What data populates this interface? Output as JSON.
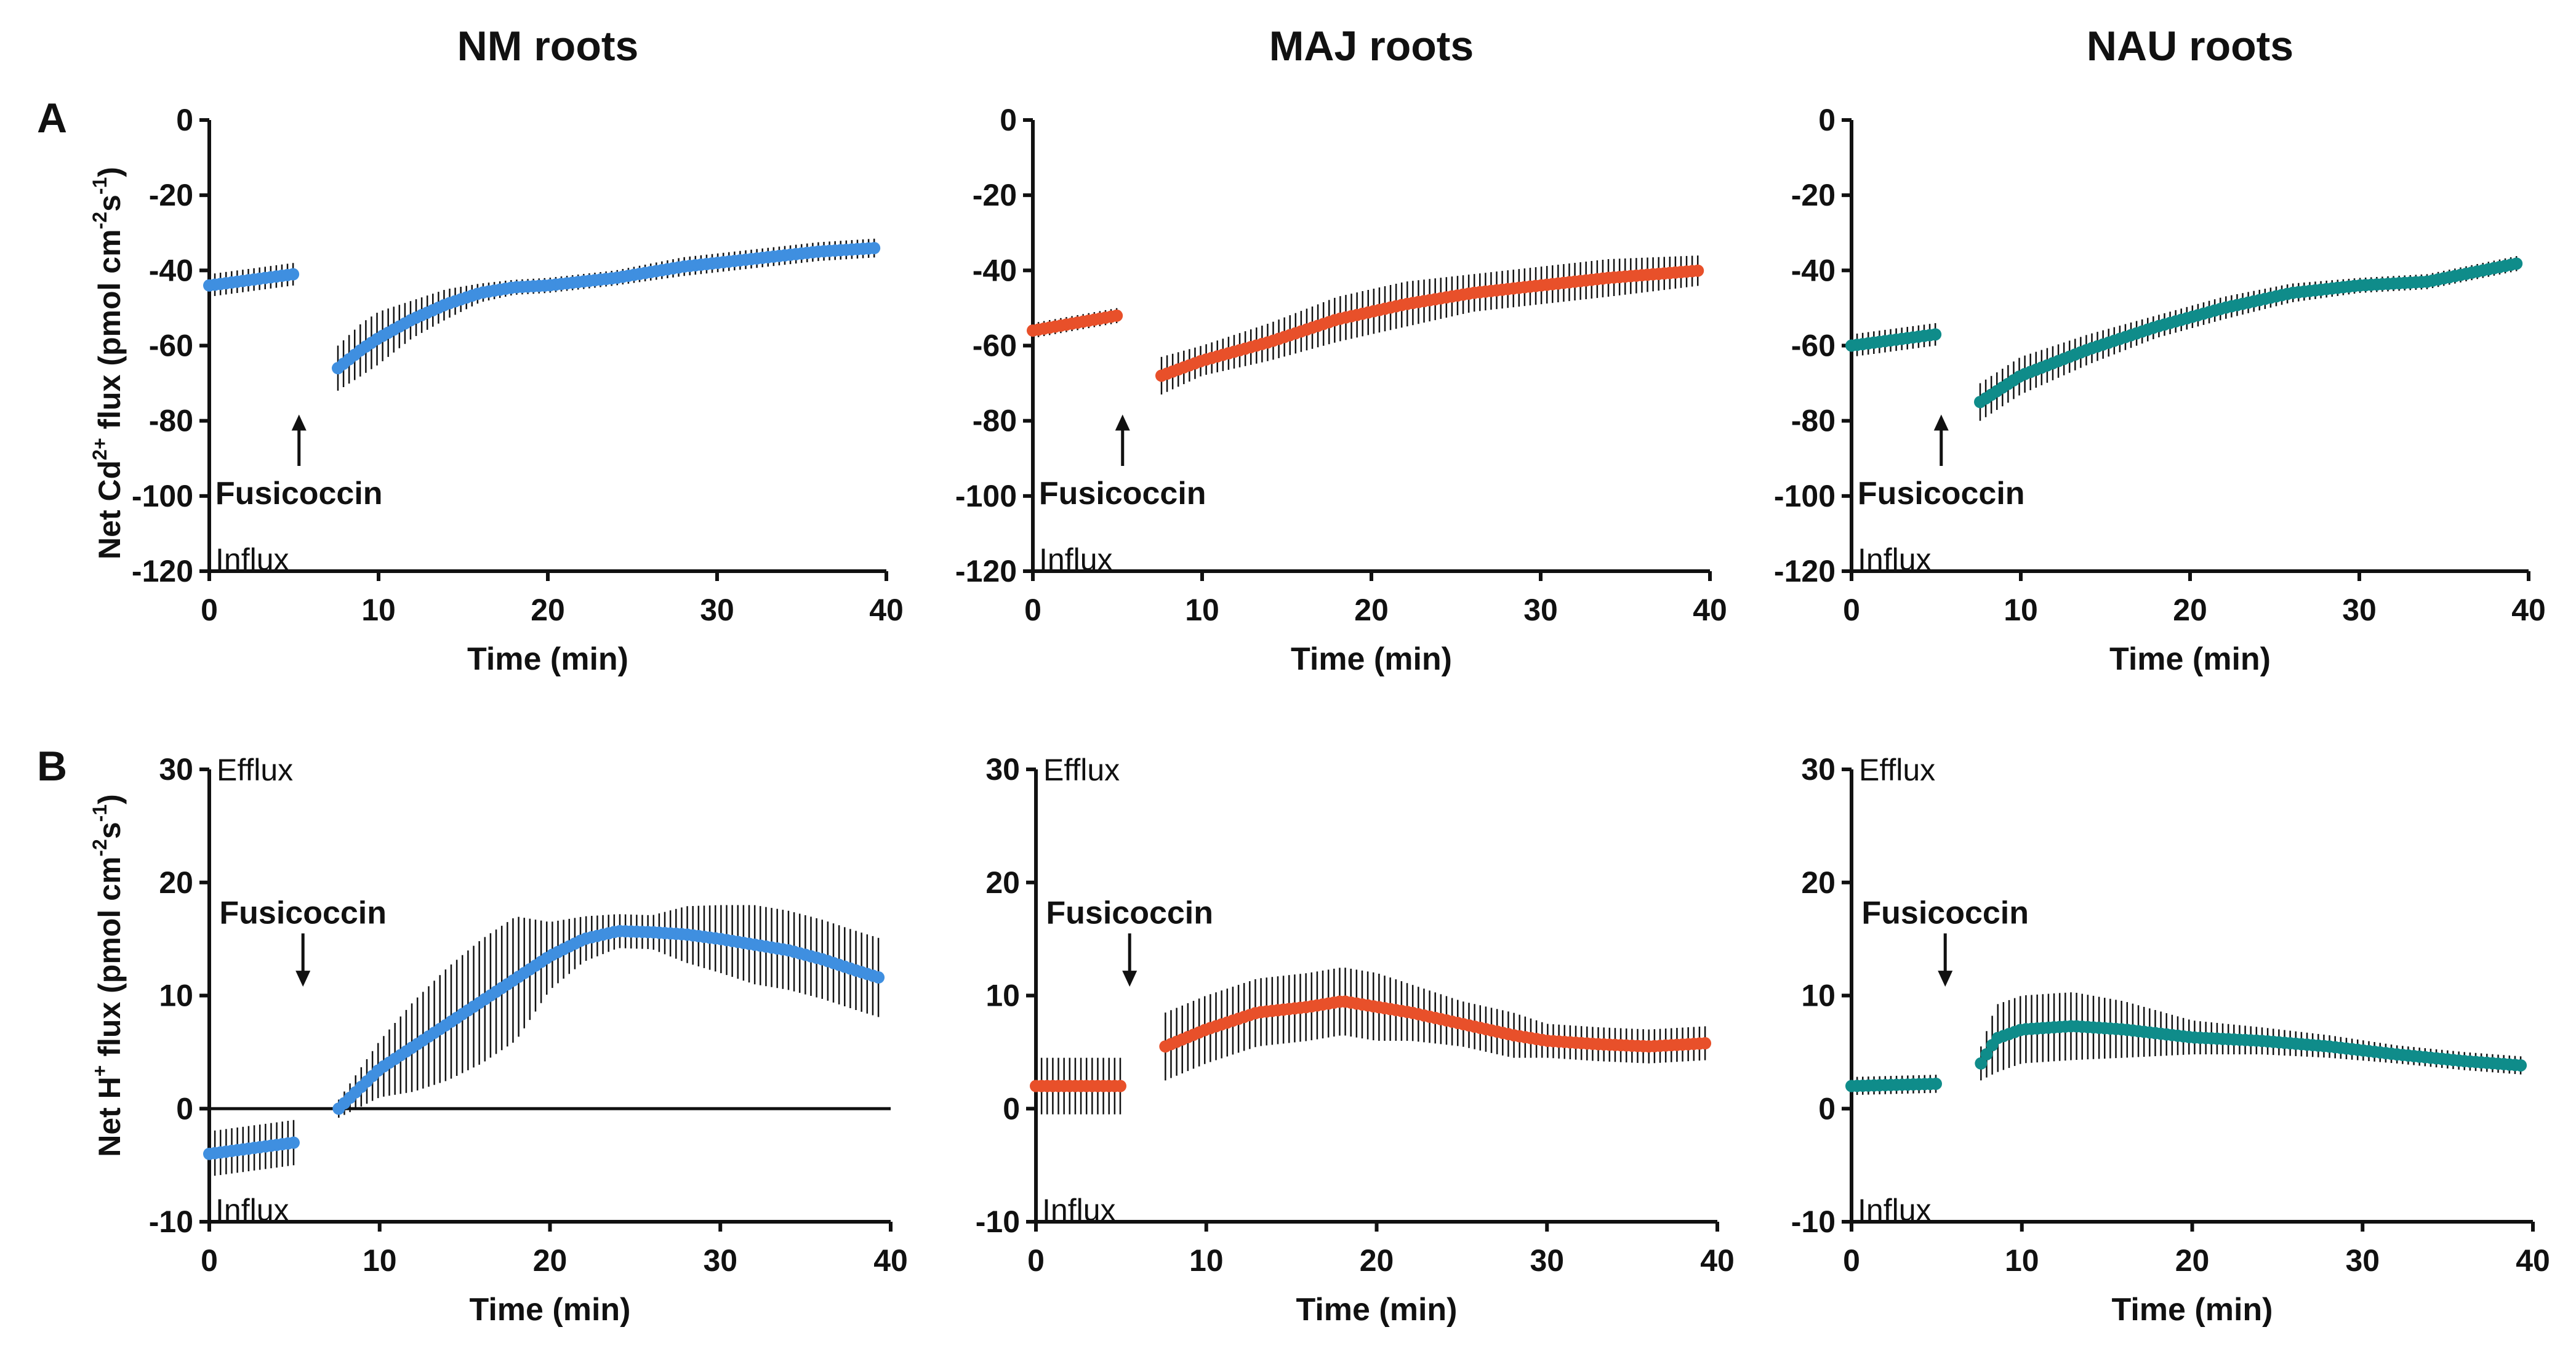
{
  "chart_data": [
    {
      "type": "scatter",
      "row": "A",
      "title": "NM roots",
      "xlabel": "Time (min)",
      "ylabel_main": "Net Cd",
      "ylabel_sup": "2+",
      "ylabel_tail": " flux (pmol cm",
      "ylabel_sup2": "-2",
      "ylabel_mid": "s",
      "ylabel_sup3": "-1",
      "ylabel_end": ")",
      "xlim": [
        0,
        40
      ],
      "ylim": [
        -120,
        0
      ],
      "xticks": [
        "0",
        "10",
        "20",
        "30",
        "40"
      ],
      "yticks": [
        "0",
        "-20",
        "-40",
        "-60",
        "-80",
        "-100",
        "-120"
      ],
      "corner_label": "Influx",
      "treatment": "Fusicoccin",
      "treatment_time": 5.3,
      "treatment_arrow": "up",
      "treatment_arrow_range": [
        -79,
        -92
      ],
      "color": "#3F8FE0",
      "series": [
        {
          "name": "before",
          "x": [
            0,
            5
          ],
          "y": [
            -44,
            -41
          ],
          "err": [
            3,
            3
          ]
        },
        {
          "name": "after",
          "x": [
            7.6,
            9,
            10,
            12,
            14,
            16,
            18,
            20,
            24,
            28,
            32,
            36,
            39.5
          ],
          "y": [
            -66,
            -61,
            -58,
            -53,
            -49,
            -46,
            -44.5,
            -44,
            -42,
            -39,
            -37,
            -35,
            -34
          ],
          "err": [
            6,
            7,
            7,
            5,
            4,
            2.5,
            2,
            2,
            2,
            2.5,
            2.5,
            2.5,
            2.5
          ]
        }
      ]
    },
    {
      "type": "scatter",
      "row": "A",
      "title": "MAJ roots",
      "xlabel": "Time (min)",
      "xlim": [
        0,
        40
      ],
      "ylim": [
        -120,
        0
      ],
      "xticks": [
        "0",
        "10",
        "20",
        "30",
        "40"
      ],
      "yticks": [
        "0",
        "-20",
        "-40",
        "-60",
        "-80",
        "-100",
        "-120"
      ],
      "corner_label": "Influx",
      "treatment": "Fusicoccin",
      "treatment_time": 5.3,
      "treatment_arrow": "up",
      "treatment_arrow_range": [
        -79,
        -92
      ],
      "color": "#E8502A",
      "series": [
        {
          "name": "before",
          "x": [
            0,
            5
          ],
          "y": [
            -56,
            -52
          ],
          "err": [
            2,
            2
          ]
        },
        {
          "name": "after",
          "x": [
            7.6,
            10,
            14,
            18,
            22,
            26,
            30,
            34,
            39.5
          ],
          "y": [
            -68,
            -64,
            -59,
            -53,
            -49,
            -46,
            -44,
            -42,
            -40
          ],
          "err": [
            5,
            4,
            5,
            6,
            6,
            5,
            5,
            5,
            4
          ]
        }
      ]
    },
    {
      "type": "scatter",
      "row": "A",
      "title": "NAU roots",
      "xlabel": "Time (min)",
      "xlim": [
        0,
        40
      ],
      "ylim": [
        -120,
        0
      ],
      "xticks": [
        "0",
        "10",
        "20",
        "30",
        "40"
      ],
      "yticks": [
        "0",
        "-20",
        "-40",
        "-60",
        "-80",
        "-100",
        "-120"
      ],
      "corner_label": "Influx",
      "treatment": "Fusicoccin",
      "treatment_time": 5.3,
      "treatment_arrow": "up",
      "treatment_arrow_range": [
        -79,
        -92
      ],
      "color": "#0F8C8A",
      "series": [
        {
          "name": "before",
          "x": [
            0,
            5
          ],
          "y": [
            -60,
            -57
          ],
          "err": [
            3,
            3
          ]
        },
        {
          "name": "after",
          "x": [
            7.6,
            10,
            14,
            18,
            22,
            26,
            30,
            34,
            39.5
          ],
          "y": [
            -75,
            -68,
            -61,
            -55,
            -50,
            -46,
            -44,
            -43,
            -38
          ],
          "err": [
            5,
            5,
            4,
            3,
            3,
            2.5,
            2,
            2,
            2
          ]
        }
      ]
    },
    {
      "type": "scatter",
      "row": "B",
      "title": "",
      "xlabel": "Time (min)",
      "ylabel_main": "Net H",
      "ylabel_sup": "+",
      "ylabel_tail": " flux (pmol cm",
      "ylabel_sup2": "-2",
      "ylabel_mid": "s",
      "ylabel_sup3": "-1",
      "ylabel_end": ")",
      "xlim": [
        0,
        40
      ],
      "ylim": [
        -10,
        30
      ],
      "xticks": [
        "0",
        "10",
        "20",
        "30",
        "40"
      ],
      "yticks": [
        "30",
        "20",
        "10",
        "0",
        "-10"
      ],
      "zero_line": true,
      "top_label": "Efflux",
      "corner_label": "Influx",
      "treatment": "Fusicoccin",
      "treatment_time": 5.5,
      "treatment_arrow": "down",
      "treatment_arrow_range": [
        15.5,
        11
      ],
      "color": "#3F8FE0",
      "series": [
        {
          "name": "before",
          "x": [
            0,
            5
          ],
          "y": [
            -4,
            -3
          ],
          "err": [
            2,
            2
          ]
        },
        {
          "name": "after",
          "x": [
            7.6,
            10,
            12,
            14,
            16,
            18,
            20,
            22,
            24,
            26,
            28,
            30,
            32,
            34,
            36,
            38,
            39.5
          ],
          "y": [
            0,
            3.5,
            5.5,
            7.5,
            9.5,
            11.5,
            13.5,
            15,
            15.7,
            15.6,
            15.4,
            15,
            14.5,
            14,
            13.2,
            12.2,
            11.5
          ],
          "err": [
            0.8,
            2.5,
            4,
            5,
            5.5,
            5.5,
            3,
            2,
            1.5,
            1.5,
            2.5,
            3,
            3.5,
            3.5,
            3.5,
            3.5,
            3.5
          ]
        }
      ]
    },
    {
      "type": "scatter",
      "row": "B",
      "title": "",
      "xlabel": "Time (min)",
      "xlim": [
        0,
        40
      ],
      "ylim": [
        -10,
        30
      ],
      "xticks": [
        "0",
        "10",
        "20",
        "30",
        "40"
      ],
      "yticks": [
        "30",
        "20",
        "10",
        "0",
        "-10"
      ],
      "top_label": "Efflux",
      "corner_label": "Influx",
      "treatment": "Fusicoccin",
      "treatment_time": 5.5,
      "treatment_arrow": "down",
      "treatment_arrow_range": [
        15.5,
        11
      ],
      "color": "#E8502A",
      "series": [
        {
          "name": "before",
          "x": [
            0,
            5
          ],
          "y": [
            2,
            2
          ],
          "err": [
            2.5,
            2.5
          ]
        },
        {
          "name": "after",
          "x": [
            7.6,
            10,
            13,
            16,
            18,
            20,
            22,
            25,
            28,
            30,
            33,
            36,
            39.5
          ],
          "y": [
            5.5,
            7,
            8.5,
            9,
            9.5,
            9,
            8.5,
            7.5,
            6.5,
            6,
            5.7,
            5.5,
            5.8
          ],
          "err": [
            3,
            3,
            3,
            3,
            3,
            3,
            2.5,
            2,
            2,
            1.5,
            1.5,
            1.5,
            1.5
          ]
        }
      ]
    },
    {
      "type": "scatter",
      "row": "B",
      "title": "",
      "xlabel": "Time (min)",
      "xlim": [
        0,
        40
      ],
      "ylim": [
        -10,
        30
      ],
      "xticks": [
        "0",
        "10",
        "20",
        "30",
        "40"
      ],
      "yticks": [
        "30",
        "20",
        "10",
        "0",
        "-10"
      ],
      "top_label": "Efflux",
      "corner_label": "Influx",
      "treatment": "Fusicoccin",
      "treatment_time": 5.5,
      "treatment_arrow": "down",
      "treatment_arrow_range": [
        15.5,
        11
      ],
      "color": "#0F8C8A",
      "series": [
        {
          "name": "before",
          "x": [
            0,
            5
          ],
          "y": [
            2,
            2.2
          ],
          "err": [
            0.8,
            0.8
          ]
        },
        {
          "name": "after",
          "x": [
            7.6,
            8.5,
            10,
            13,
            16,
            20,
            24,
            28,
            32,
            36,
            39.5
          ],
          "y": [
            4,
            6.2,
            7,
            7.3,
            7,
            6.3,
            6,
            5.5,
            4.8,
            4.2,
            3.8
          ],
          "err": [
            1.5,
            3,
            3,
            3,
            2.5,
            1.5,
            1.2,
            1,
            0.8,
            0.8,
            0.8
          ]
        }
      ]
    }
  ],
  "panel_labels": [
    "A",
    "B"
  ]
}
